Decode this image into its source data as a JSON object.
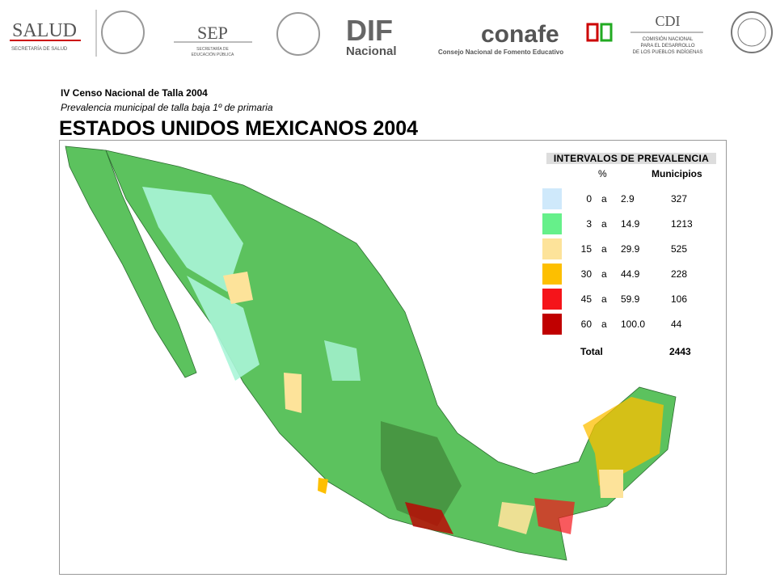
{
  "logos": {
    "salud": {
      "name": "SALUD",
      "sub": "SECRETARÍA DE SALUD"
    },
    "sep": {
      "name": "SEP",
      "sub1": "SECRETARÍA DE",
      "sub2": "EDUCACIÓN PÚBLICA"
    },
    "dif": {
      "name": "DIF",
      "sub": "Nacional"
    },
    "conafe": {
      "name": "conafe",
      "sub": "Consejo Nacional de Fomento Educativo"
    },
    "cdi": {
      "name": "CDI",
      "sub1": "COMISIÓN NACIONAL",
      "sub2": "PARA EL DESARROLLO",
      "sub3": "DE LOS PUEBLOS INDÍGENAS"
    }
  },
  "header": {
    "kicker": "IV Censo Nacional de Talla 2004",
    "subtitle": "Prevalencia municipal de talla baja 1º de primaria",
    "title": "ESTADOS UNIDOS MEXICANOS 2004"
  },
  "legend": {
    "title": "INTERVALOS DE PREVALENCIA",
    "columns": [
      "%",
      "Municipios"
    ],
    "rows": [
      {
        "color": "#cfe9fb",
        "from": "0",
        "sep": "a",
        "to": "2.9",
        "count": "327"
      },
      {
        "color": "#66f08a",
        "from": "3",
        "sep": "a",
        "to": "14.9",
        "count": "1213"
      },
      {
        "color": "#fde39a",
        "from": "15",
        "sep": "a",
        "to": "29.9",
        "count": "525"
      },
      {
        "color": "#fdbf00",
        "from": "30",
        "sep": "a",
        "to": "44.9",
        "count": "228"
      },
      {
        "color": "#f5141a",
        "from": "45",
        "sep": "a",
        "to": "59.9",
        "count": "106"
      },
      {
        "color": "#c00000",
        "from": "60",
        "sep": "a",
        "to": "100.0",
        "count": "44"
      }
    ],
    "total": {
      "label": "Total",
      "count": "2443"
    }
  }
}
